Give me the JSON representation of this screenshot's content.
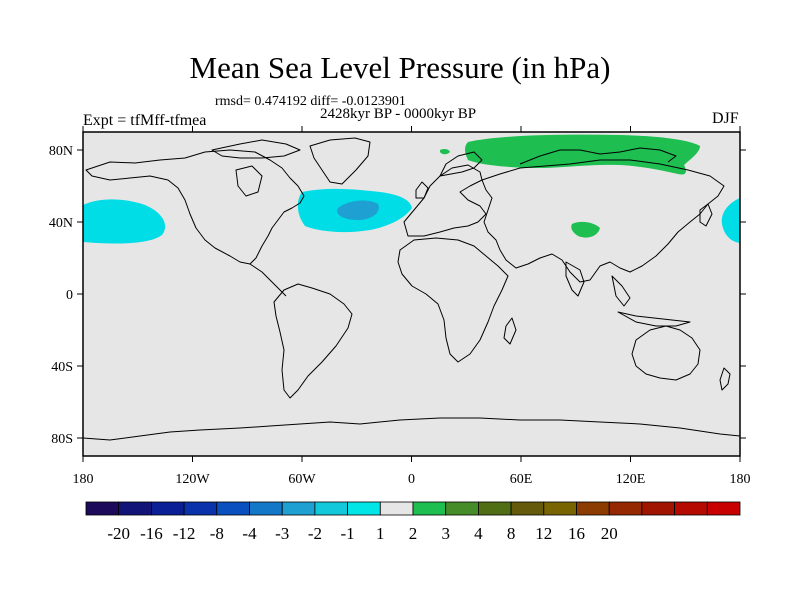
{
  "map": {
    "title": "Mean Sea Level Pressure (in hPa)",
    "stats": "rmsd= 0.474192 diff= -0.0123901",
    "period": "2428kyr BP - 0000kyr BP",
    "experiment": "Expt = tfMff-tfmea",
    "season": "DJF",
    "lat_ticks": [
      "80N",
      "40N",
      "0",
      "40S",
      "80S"
    ],
    "lon_ticks": [
      "180",
      "120W",
      "60W",
      "0",
      "60E",
      "120E",
      "180"
    ],
    "background_color": "#e6e6e6"
  },
  "colorbar": {
    "colors": [
      "#1e0a5a",
      "#121478",
      "#0a1e96",
      "#0a32aa",
      "#0a50be",
      "#1478c8",
      "#1ea0d2",
      "#14c8dc",
      "#00e6e6",
      "#e6e6e6",
      "#1ebe50",
      "#468c28",
      "#506e14",
      "#645a0a",
      "#786400",
      "#8c3c00",
      "#962800",
      "#a01400",
      "#b40a00",
      "#c80000"
    ],
    "labels": [
      "-20",
      "-16",
      "-12",
      "-8",
      "-4",
      "-3",
      "-2",
      "-1",
      "1",
      "2",
      "3",
      "4",
      "8",
      "12",
      "16",
      "20"
    ]
  },
  "anomalies": {
    "cyan": "#00dde6",
    "blue": "#1ea0d2",
    "green": "#1ebe50"
  }
}
